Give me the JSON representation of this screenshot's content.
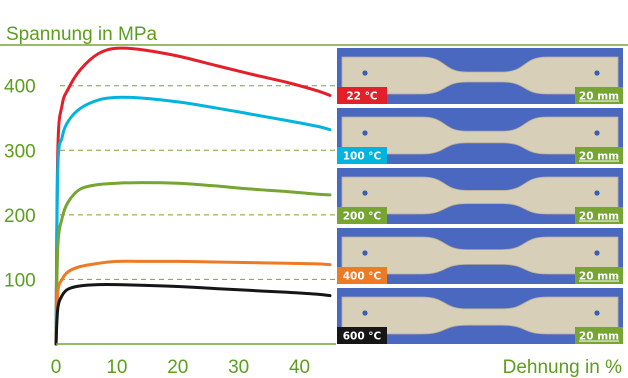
{
  "chart_data": {
    "type": "line",
    "ylabel": "Spannung in MPa",
    "xlabel": "Dehnung in %",
    "xlim": [
      0,
      45
    ],
    "ylim": [
      0,
      460
    ],
    "xticks": [
      "0",
      "10",
      "20",
      "30",
      "40"
    ],
    "yticks": [
      "100",
      "200",
      "300",
      "400"
    ],
    "grid": "dashed horizontal at y ticks",
    "series": [
      {
        "name": "22 °C",
        "color": "#e3202a",
        "x": [
          0,
          0.3,
          1,
          2,
          4,
          7,
          10,
          14,
          20,
          26,
          32,
          38,
          43,
          45
        ],
        "y": [
          0,
          300,
          370,
          395,
          425,
          450,
          458,
          456,
          446,
          432,
          418,
          405,
          392,
          385
        ]
      },
      {
        "name": "100 °C",
        "color": "#00b4df",
        "x": [
          0,
          0.3,
          1,
          2,
          4,
          7,
          10,
          14,
          20,
          26,
          32,
          38,
          43,
          45
        ],
        "y": [
          0,
          270,
          320,
          345,
          365,
          378,
          382,
          381,
          375,
          366,
          356,
          346,
          337,
          332
        ]
      },
      {
        "name": "200 °C",
        "color": "#76a532",
        "x": [
          0,
          0.3,
          1,
          2,
          4,
          7,
          10,
          14,
          20,
          26,
          32,
          38,
          43,
          45
        ],
        "y": [
          0,
          150,
          195,
          220,
          240,
          247,
          249,
          250,
          249,
          245,
          240,
          236,
          232,
          231
        ]
      },
      {
        "name": "400 °C",
        "color": "#ee7a23",
        "x": [
          0,
          0.3,
          1,
          2,
          4,
          7,
          10,
          14,
          20,
          26,
          32,
          38,
          43,
          45
        ],
        "y": [
          0,
          80,
          100,
          112,
          120,
          125,
          128,
          128,
          128,
          127,
          126,
          125,
          124,
          123
        ]
      },
      {
        "name": "600 °C",
        "color": "#161616",
        "x": [
          0,
          0.3,
          1,
          2,
          4,
          7,
          10,
          14,
          20,
          26,
          32,
          38,
          43,
          45
        ],
        "y": [
          0,
          55,
          75,
          85,
          90,
          92,
          92,
          91,
          89,
          86,
          83,
          80,
          77,
          75
        ]
      }
    ],
    "annotations": [
      {
        "temperature": "22 °C",
        "scale": "20 mm",
        "color": "#e3202a"
      },
      {
        "temperature": "100 °C",
        "scale": "20 mm",
        "color": "#00b4df"
      },
      {
        "temperature": "200 °C",
        "scale": "20 mm",
        "color": "#76a532"
      },
      {
        "temperature": "400 °C",
        "scale": "20 mm",
        "color": "#ee7a23"
      },
      {
        "temperature": "600 °C",
        "scale": "20 mm",
        "color": "#161616"
      }
    ]
  },
  "colors": {
    "accent": "#5c9e1e",
    "scale_bg": "#76a532",
    "photo_bg": "#4a68c0",
    "specimen": "#d8cfb8"
  }
}
